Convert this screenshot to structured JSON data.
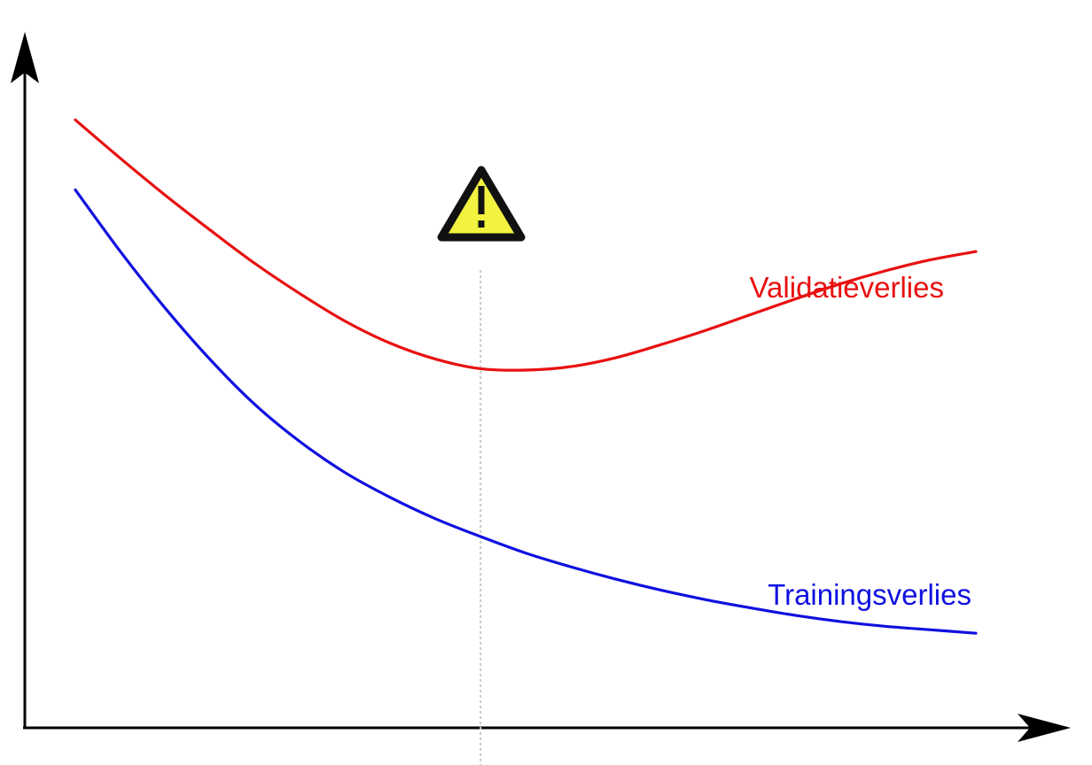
{
  "chart_data": {
    "type": "line",
    "xlim": [
      0,
      10
    ],
    "ylim": [
      0,
      10
    ],
    "grid": false,
    "axes": {
      "x_arrow": true,
      "y_arrow": true,
      "tick_labels": false
    },
    "series": [
      {
        "name": "Validatieverlies",
        "color": "#e81010",
        "x": [
          0,
          0.5,
          1,
          1.5,
          2,
          2.5,
          3,
          3.5,
          4,
          4.5,
          5,
          5.5,
          6,
          6.5,
          7,
          7.5,
          8,
          8.5,
          9,
          9.5,
          10
        ],
        "y": [
          8.87,
          8.31,
          7.77,
          7.26,
          6.77,
          6.33,
          5.93,
          5.61,
          5.38,
          5.24,
          5.22,
          5.27,
          5.4,
          5.59,
          5.8,
          6.03,
          6.26,
          6.48,
          6.67,
          6.83,
          6.95
        ]
      },
      {
        "name": "Trainingsverlies",
        "color": "#1010e0",
        "x": [
          0,
          0.5,
          1,
          1.5,
          2,
          2.5,
          3,
          3.5,
          4,
          4.5,
          5,
          5.5,
          6,
          6.5,
          7,
          7.5,
          8,
          8.5,
          9,
          9.5,
          10
        ],
        "y": [
          7.85,
          6.95,
          6.12,
          5.37,
          4.71,
          4.17,
          3.72,
          3.36,
          3.05,
          2.79,
          2.55,
          2.35,
          2.17,
          2.01,
          1.87,
          1.75,
          1.64,
          1.55,
          1.48,
          1.43,
          1.38
        ]
      }
    ],
    "marker_line": {
      "x": 4.5,
      "style": "dotted",
      "color": "#c8c8c8"
    },
    "warning_icon": {
      "icon": "warning-triangle-icon",
      "fill": "#f2f240",
      "stroke": "#111111"
    },
    "axis_color": "#000000"
  }
}
